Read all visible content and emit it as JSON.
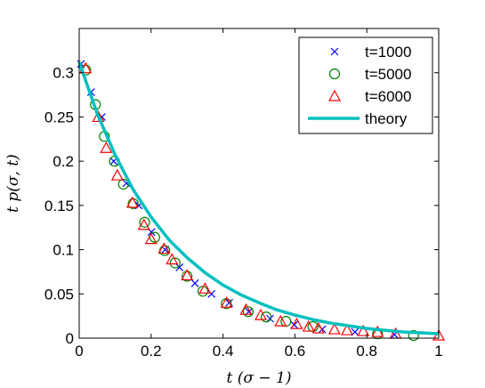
{
  "chart_data": {
    "type": "scatter",
    "xlabel": "t (σ − 1)",
    "ylabel": "t p(σ, t)",
    "xlim": [
      0,
      1
    ],
    "ylim": [
      0,
      0.35
    ],
    "x_ticks": [
      "0",
      "0.2",
      "0.4",
      "0.6",
      "0.8",
      "1"
    ],
    "y_ticks": [
      "0",
      "0.05",
      "0.1",
      "0.15",
      "0.2",
      "0.25",
      "0.3"
    ],
    "grid": false,
    "legend_position": "top-right",
    "series": [
      {
        "name": "t=1000",
        "marker": "x",
        "color": "#0000ff",
        "x": [
          0.005,
          0.033,
          0.063,
          0.096,
          0.131,
          0.166,
          0.201,
          0.239,
          0.279,
          0.322,
          0.368,
          0.417,
          0.472,
          0.531,
          0.598,
          0.676,
          0.767,
          0.877
        ],
        "y": [
          0.31,
          0.278,
          0.25,
          0.2,
          0.175,
          0.15,
          0.12,
          0.1,
          0.08,
          0.062,
          0.05,
          0.04,
          0.03,
          0.022,
          0.015,
          0.01,
          0.007,
          0.004
        ]
      },
      {
        "name": "t=5000",
        "marker": "o",
        "color": "#008000",
        "x": [
          0.018,
          0.045,
          0.07,
          0.098,
          0.123,
          0.15,
          0.182,
          0.21,
          0.238,
          0.267,
          0.3,
          0.344,
          0.409,
          0.47,
          0.52,
          0.575,
          0.65,
          0.83,
          0.93
        ],
        "y": [
          0.303,
          0.264,
          0.228,
          0.2,
          0.174,
          0.152,
          0.131,
          0.114,
          0.099,
          0.085,
          0.07,
          0.053,
          0.039,
          0.03,
          0.024,
          0.019,
          0.013,
          0.005,
          0.003
        ]
      },
      {
        "name": "t=6000",
        "marker": "^",
        "color": "#ff0000",
        "x": [
          0.018,
          0.053,
          0.075,
          0.106,
          0.148,
          0.18,
          0.2,
          0.236,
          0.258,
          0.3,
          0.35,
          0.41,
          0.464,
          0.505,
          0.56,
          0.605,
          0.638,
          0.665,
          0.71,
          0.745,
          0.79,
          0.83,
          0.88,
          1.0
        ],
        "y": [
          0.305,
          0.25,
          0.215,
          0.184,
          0.153,
          0.128,
          0.112,
          0.101,
          0.089,
          0.071,
          0.056,
          0.04,
          0.032,
          0.026,
          0.019,
          0.016,
          0.013,
          0.011,
          0.01,
          0.009,
          0.008,
          0.007,
          0.005,
          0.003
        ]
      }
    ],
    "theory": {
      "name": "theory",
      "color": "#00bfbf",
      "x": [
        0,
        0.05,
        0.1,
        0.15,
        0.2,
        0.25,
        0.3,
        0.35,
        0.4,
        0.45,
        0.5,
        0.55,
        0.6,
        0.65,
        0.7,
        0.75,
        0.8,
        0.85,
        0.9,
        0.95,
        1.0
      ],
      "y": [
        0.312,
        0.254,
        0.207,
        0.168,
        0.137,
        0.111,
        0.091,
        0.074,
        0.06,
        0.049,
        0.04,
        0.032,
        0.026,
        0.021,
        0.017,
        0.014,
        0.011,
        0.009,
        0.007,
        0.006,
        0.005
      ]
    }
  }
}
